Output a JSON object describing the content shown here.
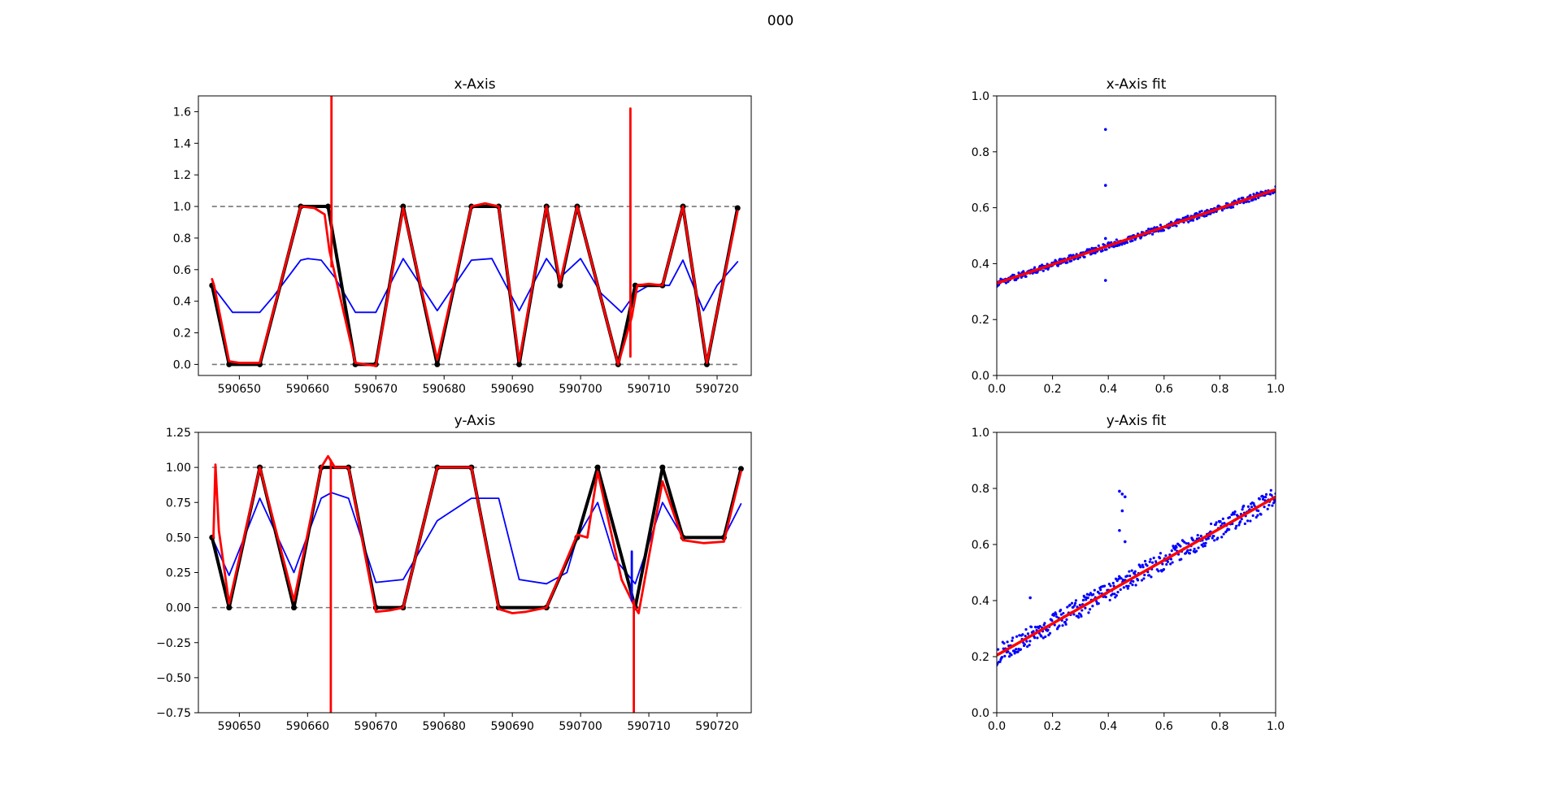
{
  "figure": {
    "suptitle": "000"
  },
  "chart_data": [
    {
      "id": "x-axis",
      "type": "line",
      "title": "x-Axis",
      "xlabel": "",
      "ylabel": "",
      "xlim": [
        590644,
        590725
      ],
      "ylim": [
        -0.07,
        1.7
      ],
      "xticks": [
        590650,
        590660,
        590670,
        590680,
        590690,
        590700,
        590710,
        590720
      ],
      "xtick_labels": [
        "590650",
        "590660",
        "590670",
        "590680",
        "590690",
        "590700",
        "590710",
        "590720"
      ],
      "yticks": [
        0.0,
        0.2,
        0.4,
        0.6,
        0.8,
        1.0,
        1.2,
        1.4,
        1.6
      ],
      "ytick_labels": [
        "0.0",
        "0.2",
        "0.4",
        "0.6",
        "0.8",
        "1.0",
        "1.2",
        "1.4",
        "1.6"
      ],
      "grid": false,
      "hlines": [
        0.0,
        1.0
      ],
      "series": [
        {
          "color": "#0000ff",
          "kind": "line",
          "x": [
            590646,
            590649,
            590653,
            590655,
            590659,
            590660,
            590662,
            590664,
            590667,
            590670,
            590674,
            590679,
            590684,
            590687,
            590691,
            590695,
            590697,
            590700,
            590703,
            590706,
            590708,
            590710,
            590713,
            590715,
            590718,
            590720,
            590723
          ],
          "y": [
            0.5,
            0.33,
            0.33,
            0.43,
            0.66,
            0.67,
            0.66,
            0.55,
            0.33,
            0.33,
            0.67,
            0.34,
            0.66,
            0.67,
            0.34,
            0.67,
            0.55,
            0.67,
            0.45,
            0.33,
            0.45,
            0.5,
            0.5,
            0.66,
            0.34,
            0.5,
            0.65
          ]
        },
        {
          "color": "#000000",
          "kind": "thick",
          "x": [
            590646,
            590648.5,
            590653,
            590659,
            590663,
            590667,
            590670,
            590674,
            590679,
            590684,
            590688,
            590691,
            590695,
            590697,
            590699.5,
            590705.5,
            590708,
            590712,
            590715,
            590718.5,
            590723
          ],
          "y": [
            0.5,
            0.0,
            0.0,
            1.0,
            1.0,
            0.0,
            0.0,
            1.0,
            0.0,
            1.0,
            1.0,
            0.0,
            1.0,
            0.5,
            1.0,
            0.0,
            0.5,
            0.5,
            1.0,
            0.0,
            0.99
          ]
        },
        {
          "color": "#ff0000",
          "kind": "thick",
          "x": [
            590646,
            590646.3,
            590648.5,
            590650,
            590653,
            590659,
            590661,
            590662.5,
            590663.2,
            590667,
            590670,
            590674,
            590679,
            590684,
            590686,
            590688,
            590691,
            590695,
            590697,
            590699.5,
            590705.5,
            590707.5,
            590708.3,
            590710,
            590712,
            590715,
            590718.5,
            590723
          ],
          "y": [
            0.54,
            0.5,
            0.02,
            0.01,
            0.01,
            1.0,
            0.99,
            0.95,
            0.72,
            0.01,
            -0.01,
            0.99,
            0.03,
            1.0,
            1.02,
            1.0,
            0.02,
            1.0,
            0.52,
            1.0,
            0.0,
            0.3,
            0.5,
            0.51,
            0.5,
            1.0,
            0.01,
            0.97
          ]
        },
        {
          "color": "#ff0000",
          "kind": "spike",
          "x": [
            590663.5,
            590663.5
          ],
          "y": [
            0.62,
            1.7
          ]
        },
        {
          "color": "#ff0000",
          "kind": "spike",
          "x": [
            590707.3,
            590707.3
          ],
          "y": [
            0.05,
            1.62
          ]
        }
      ]
    },
    {
      "id": "x-axis-fit",
      "type": "scatter",
      "title": "x-Axis fit",
      "xlabel": "",
      "ylabel": "",
      "xlim": [
        0,
        1
      ],
      "ylim": [
        0,
        1
      ],
      "xticks": [
        0.0,
        0.2,
        0.4,
        0.6,
        0.8,
        1.0
      ],
      "xtick_labels": [
        "0.0",
        "0.2",
        "0.4",
        "0.6",
        "0.8",
        "1.0"
      ],
      "yticks": [
        0.0,
        0.2,
        0.4,
        0.6,
        0.8,
        1.0
      ],
      "ytick_labels": [
        "0.0",
        "0.2",
        "0.4",
        "0.6",
        "0.8",
        "1.0"
      ],
      "grid": false,
      "band": {
        "x0": 0.0,
        "x1": 1.0,
        "y0": 0.33,
        "y1": 0.665,
        "halfwidth": 0.012,
        "color": "#0000ff"
      },
      "outliers": {
        "color": "#0000ff",
        "x": [
          0.39,
          0.39,
          0.39,
          0.39
        ],
        "y": [
          0.88,
          0.68,
          0.49,
          0.34
        ]
      },
      "fit_line": {
        "color": "#ff0000",
        "x": [
          0.0,
          1.0
        ],
        "y": [
          0.33,
          0.665
        ]
      }
    },
    {
      "id": "y-axis",
      "type": "line",
      "title": "y-Axis",
      "xlabel": "",
      "ylabel": "",
      "xlim": [
        590644,
        590725
      ],
      "ylim": [
        -0.75,
        1.25
      ],
      "xticks": [
        590650,
        590660,
        590670,
        590680,
        590690,
        590700,
        590710,
        590720
      ],
      "xtick_labels": [
        "590650",
        "590660",
        "590670",
        "590680",
        "590690",
        "590700",
        "590710",
        "590720"
      ],
      "yticks": [
        -0.75,
        -0.5,
        -0.25,
        0.0,
        0.25,
        0.5,
        0.75,
        1.0,
        1.25
      ],
      "ytick_labels": [
        "−0.75",
        "−0.50",
        "−0.25",
        "0.00",
        "0.25",
        "0.50",
        "0.75",
        "1.00",
        "1.25"
      ],
      "grid": false,
      "hlines": [
        0.0,
        1.0
      ],
      "series": [
        {
          "color": "#0000ff",
          "kind": "line",
          "x": [
            590646,
            590648.5,
            590653,
            590658,
            590662,
            590663.5,
            590666,
            590670,
            590674,
            590679,
            590684,
            590688,
            590691,
            590695,
            590698,
            590699.5,
            590702.5,
            590705,
            590708,
            590712,
            590715,
            590718.5,
            590721,
            590723.5
          ],
          "y": [
            0.5,
            0.23,
            0.78,
            0.25,
            0.78,
            0.82,
            0.78,
            0.18,
            0.2,
            0.62,
            0.78,
            0.78,
            0.2,
            0.17,
            0.25,
            0.5,
            0.75,
            0.35,
            0.17,
            0.75,
            0.5,
            0.5,
            0.5,
            0.74
          ]
        },
        {
          "color": "#000000",
          "kind": "thick",
          "x": [
            590646,
            590648.5,
            590653,
            590658,
            590662,
            590666,
            590670,
            590674,
            590679,
            590684,
            590688,
            590695,
            590699.5,
            590702.5,
            590708,
            590712,
            590715,
            590721,
            590723.5
          ],
          "y": [
            0.5,
            0.0,
            1.0,
            0.0,
            1.0,
            1.0,
            0.0,
            0.0,
            1.0,
            1.0,
            0.0,
            0.0,
            0.5,
            1.0,
            0.0,
            1.0,
            0.5,
            0.5,
            0.99
          ]
        },
        {
          "color": "#ff0000",
          "kind": "thick",
          "x": [
            590646.2,
            590646.5,
            590647,
            590648.5,
            590653,
            590658,
            590662,
            590663,
            590664,
            590666,
            590670,
            590672,
            590674,
            590679,
            590684,
            590688,
            590690,
            590692,
            590695,
            590699.5,
            590701,
            590702.5,
            590706,
            590708,
            590708.5,
            590712,
            590715,
            590718,
            590721,
            590723.5
          ],
          "y": [
            0.5,
            1.02,
            0.55,
            0.03,
            1.0,
            0.05,
            1.0,
            1.08,
            1.0,
            1.0,
            -0.03,
            -0.02,
            0.0,
            1.0,
            1.0,
            -0.01,
            -0.04,
            -0.03,
            0.0,
            0.52,
            0.5,
            0.97,
            0.2,
            0.0,
            -0.04,
            0.9,
            0.48,
            0.46,
            0.47,
            0.97
          ]
        },
        {
          "color": "#ff0000",
          "kind": "spike",
          "x": [
            590663.4,
            590663.4
          ],
          "y": [
            -0.75,
            1.05
          ]
        },
        {
          "color": "#ff0000",
          "kind": "spike",
          "x": [
            590707.8,
            590707.8
          ],
          "y": [
            -0.75,
            0.05
          ]
        },
        {
          "color": "#0000ff",
          "kind": "spike",
          "x": [
            590707.5,
            590707.5
          ],
          "y": [
            0.05,
            0.4
          ]
        }
      ]
    },
    {
      "id": "y-axis-fit",
      "type": "scatter",
      "title": "y-Axis fit",
      "xlabel": "",
      "ylabel": "",
      "xlim": [
        0,
        1
      ],
      "ylim": [
        0,
        1
      ],
      "xticks": [
        0.0,
        0.2,
        0.4,
        0.6,
        0.8,
        1.0
      ],
      "xtick_labels": [
        "0.0",
        "0.2",
        "0.4",
        "0.6",
        "0.8",
        "1.0"
      ],
      "yticks": [
        0.0,
        0.2,
        0.4,
        0.6,
        0.8,
        1.0
      ],
      "ytick_labels": [
        "0.0",
        "0.2",
        "0.4",
        "0.6",
        "0.8",
        "1.0"
      ],
      "grid": false,
      "band": {
        "x0": 0.0,
        "x1": 1.0,
        "y0": 0.205,
        "y1": 0.77,
        "halfwidth": 0.035,
        "color": "#0000ff"
      },
      "outliers": {
        "color": "#0000ff",
        "x": [
          0.12,
          0.44,
          0.45,
          0.46,
          0.45,
          0.46,
          0.44
        ],
        "y": [
          0.41,
          0.79,
          0.78,
          0.77,
          0.72,
          0.61,
          0.65
        ]
      },
      "fit_line": {
        "color": "#ff0000",
        "x": [
          0.0,
          1.0
        ],
        "y": [
          0.205,
          0.77
        ]
      }
    }
  ]
}
